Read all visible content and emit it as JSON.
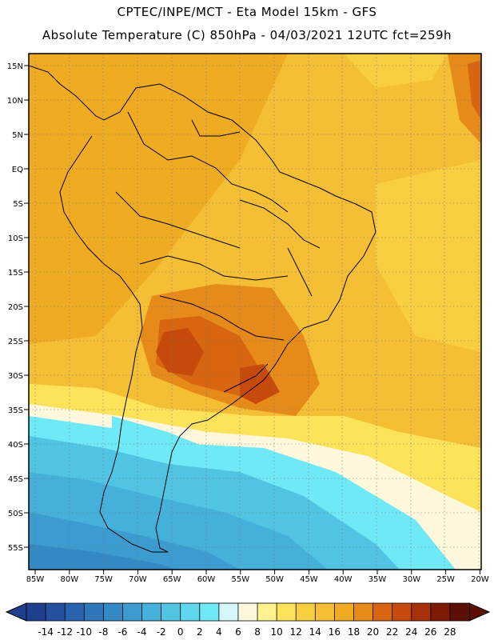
{
  "header": {
    "line1": "CPTEC/INPE/MCT -  Eta Model 15km - GFS",
    "line2": "Absolute Temperature (C) 850hPa - 04/03/2021 12UTC fct=259h"
  },
  "map": {
    "lat_ticks": [
      "15N",
      "10N",
      "5N",
      "EQ",
      "5S",
      "10S",
      "15S",
      "20S",
      "25S",
      "30S",
      "35S",
      "40S",
      "45S",
      "50S",
      "55S"
    ],
    "lon_ticks": [
      "85W",
      "80W",
      "75W",
      "70W",
      "65W",
      "60W",
      "55W",
      "50W",
      "45W",
      "40W",
      "35W",
      "30W",
      "25W",
      "20W"
    ]
  },
  "colorbar": {
    "labels": [
      "-14",
      "-12",
      "-10",
      "-8",
      "-6",
      "-4",
      "-2",
      "0",
      "2",
      "4",
      "6",
      "8",
      "10",
      "12",
      "14",
      "16",
      "18",
      "20",
      "22",
      "24",
      "26",
      "28"
    ],
    "colors": [
      "#1f3f8f",
      "#24509f",
      "#2a63ad",
      "#2f77ba",
      "#3489c4",
      "#3c9ccf",
      "#45b0d9",
      "#52c4e3",
      "#5fd6ec",
      "#70e9f6",
      "#d6f6fb",
      "#fff8dc",
      "#fff38f",
      "#fde35a",
      "#f8cf40",
      "#f4bf34",
      "#efab22",
      "#e68a1a",
      "#d86611",
      "#c74a0d",
      "#a8300a",
      "#7d1b07",
      "#5c0f05"
    ]
  }
}
